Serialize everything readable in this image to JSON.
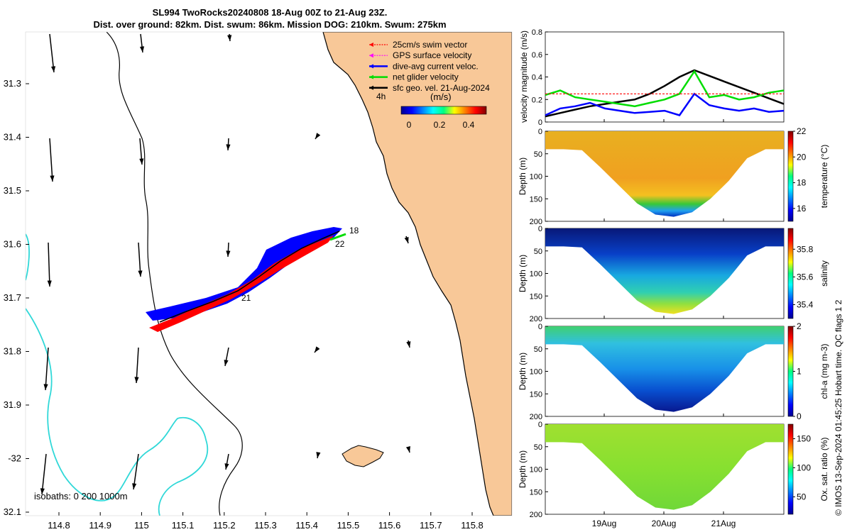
{
  "title_line1": "SL994 TwoRocks20240808 18-Aug 00Z to 21-Aug 23Z.",
  "title_line2": "Dist. over ground: 82km. Dist. swum: 86km. Mission DOG: 210km. Swum: 275km",
  "colors": {
    "land": "#f8c898",
    "coast": "#000000",
    "isobath_200": "#000000",
    "isobath_1000": "#30d8d8",
    "swim": "#ff0000",
    "gps": "#ff00ff",
    "dive_avg": "#0000ff",
    "net": "#00dd00",
    "geo": "#000000"
  },
  "map": {
    "lon_ticks": [
      "114.8",
      "114.9",
      "115",
      "115.1",
      "115.2",
      "115.3",
      "115.4",
      "115.5",
      "115.6",
      "115.7",
      "115.8"
    ],
    "lat_ticks": [
      "31.3",
      "31.4",
      "31.5",
      "31.6",
      "31.7",
      "31.8",
      "31.9",
      "-32",
      "32.1"
    ],
    "legend": [
      {
        "label": "25cm/s swim vector",
        "color": "#ff0000",
        "style": "dash"
      },
      {
        "label": "GPS surface velocity",
        "color": "#ff00ff",
        "style": "dash"
      },
      {
        "label": "dive-avg current veloc.",
        "color": "#0000ff",
        "style": "solid"
      },
      {
        "label": "net glider velocity",
        "color": "#00dd00",
        "style": "solid"
      },
      {
        "label": "sfc geo. vel. 21-Aug-2024",
        "color": "#000000",
        "style": "solid"
      }
    ],
    "time_label": "4h",
    "colorbar_unit": "(m/s)",
    "colorbar_ticks": [
      "0",
      "0.2",
      "0.4"
    ],
    "track_labels": [
      "18",
      "22",
      "21"
    ],
    "isobath_note": "isobaths: 0   200  1000m"
  },
  "chart_data": [
    {
      "type": "line",
      "ylabel": "velocity magnitude (m/s)",
      "ylim": [
        0,
        0.8
      ],
      "yticks": [
        "0",
        "0.2",
        "0.4",
        "0.6",
        "0.8"
      ],
      "x_days": [
        0,
        0.25,
        0.5,
        0.75,
        1.0,
        1.25,
        1.5,
        1.75,
        2.0,
        2.25,
        2.5,
        2.75,
        3.0,
        3.25,
        3.5,
        3.75,
        4.0
      ],
      "series": [
        {
          "name": "sfc geo velocity",
          "color": "#000000",
          "values": [
            0.05,
            0.08,
            0.11,
            0.14,
            0.16,
            0.18,
            0.2,
            0.25,
            0.32,
            0.4,
            0.46,
            0.41,
            0.36,
            0.31,
            0.26,
            0.21,
            0.16
          ]
        },
        {
          "name": "net glider velocity",
          "color": "#00dd00",
          "values": [
            0.24,
            0.28,
            0.22,
            0.2,
            0.18,
            0.16,
            0.14,
            0.17,
            0.2,
            0.25,
            0.45,
            0.22,
            0.24,
            0.2,
            0.22,
            0.26,
            0.28
          ]
        },
        {
          "name": "dive-avg current",
          "color": "#0000ff",
          "values": [
            0.06,
            0.12,
            0.14,
            0.17,
            0.12,
            0.1,
            0.08,
            0.09,
            0.1,
            0.06,
            0.25,
            0.15,
            0.12,
            0.1,
            0.12,
            0.09,
            0.1
          ]
        },
        {
          "name": "swim",
          "color": "#ff0000",
          "values": [
            0.25,
            0.25,
            0.25,
            0.25,
            0.25,
            0.25,
            0.25,
            0.25,
            0.25,
            0.25,
            0.25,
            0.25,
            0.25,
            0.25,
            0.25,
            0.25,
            0.25
          ]
        }
      ]
    },
    {
      "type": "heatmap",
      "variable": "temperature",
      "ylabel": "Depth (m)",
      "cbar_label": "temperature (°C)",
      "ylim": [
        200,
        0
      ],
      "yticks": [
        "0",
        "50",
        "100",
        "150",
        "200"
      ],
      "cbar_range": [
        15,
        22
      ],
      "cbar_ticks": [
        "16",
        "18",
        "20",
        "22"
      ],
      "depth_profile": [
        40,
        40,
        42,
        80,
        120,
        160,
        185,
        190,
        180,
        150,
        110,
        60,
        40,
        40
      ],
      "surface_value": 20.5,
      "deep_value": 16.0
    },
    {
      "type": "heatmap",
      "variable": "salinity",
      "ylabel": "Depth (m)",
      "cbar_label": "salinity",
      "ylim": [
        200,
        0
      ],
      "yticks": [
        "0",
        "50",
        "100",
        "150",
        "200"
      ],
      "cbar_range": [
        35.3,
        35.95
      ],
      "cbar_ticks": [
        "35.4",
        "35.6",
        "35.8"
      ],
      "depth_profile": [
        40,
        40,
        42,
        80,
        120,
        160,
        185,
        190,
        180,
        150,
        110,
        60,
        40,
        40
      ],
      "surface_value": 35.38,
      "deep_value": 35.7
    },
    {
      "type": "heatmap",
      "variable": "chl-a",
      "ylabel": "Depth (m)",
      "cbar_label": "chl-a (mg m-3)",
      "ylim": [
        200,
        0
      ],
      "yticks": [
        "0",
        "50",
        "100",
        "150",
        "200"
      ],
      "cbar_range": [
        0,
        2
      ],
      "cbar_ticks": [
        "0",
        "1",
        "2"
      ],
      "depth_profile": [
        40,
        40,
        42,
        80,
        120,
        160,
        185,
        190,
        180,
        150,
        110,
        60,
        40,
        40
      ],
      "surface_value": 0.9,
      "deep_value": 0.1
    },
    {
      "type": "heatmap",
      "variable": "oxygen",
      "ylabel": "Depth (m)",
      "cbar_label": "Ox. sat. ratio (%)",
      "ylim": [
        200,
        0
      ],
      "yticks": [
        "0",
        "50",
        "100",
        "150",
        "200"
      ],
      "cbar_range": [
        20,
        175
      ],
      "cbar_ticks": [
        "50",
        "100",
        "150"
      ],
      "depth_profile": [
        40,
        40,
        42,
        80,
        120,
        160,
        185,
        190,
        180,
        150,
        110,
        60,
        40,
        40
      ],
      "surface_value": 118,
      "deep_value": 110
    }
  ],
  "time_axis": {
    "ticks": [
      "19Aug",
      "20Aug",
      "21Aug"
    ]
  },
  "copyright": "© IMOS 13-Sep-2024 01:45:25 Hobart time. QC flags 1  2"
}
